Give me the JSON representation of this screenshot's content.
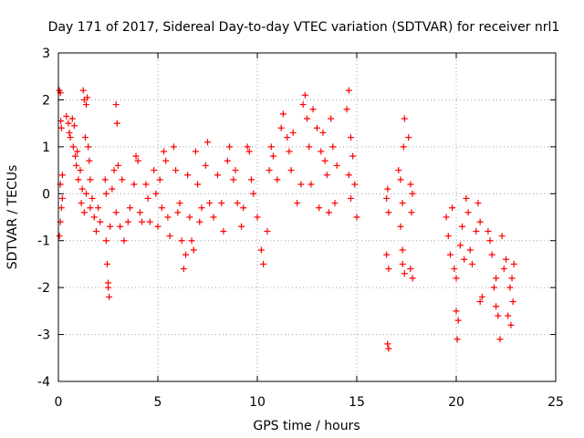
{
  "chart_data": {
    "type": "scatter",
    "title": "Day 171 of 2017, Sidereal Day-to-day VTEC variation (SDTVAR) for receiver nrl1",
    "xlabel": "GPS time / hours",
    "ylabel": "SDTVAR / TECUs",
    "xlim": [
      0,
      25
    ],
    "ylim": [
      -4,
      3
    ],
    "xticks": [
      0,
      5,
      10,
      15,
      20,
      25
    ],
    "yticks": [
      -4,
      -3,
      -2,
      -1,
      0,
      1,
      2,
      3
    ],
    "xtick_labels": [
      "0",
      "5",
      "10",
      "15",
      "20",
      "25"
    ],
    "ytick_labels": [
      "-4",
      "-3",
      "-2",
      "-1",
      "0",
      "1",
      "2",
      "3"
    ],
    "grid": true,
    "marker": "+",
    "marker_color": "#ff0000",
    "series": [
      {
        "name": "nrl1",
        "points": [
          [
            0.05,
            2.2
          ],
          [
            0.1,
            2.15
          ],
          [
            0.12,
            1.55
          ],
          [
            0.15,
            1.4
          ],
          [
            0.2,
            0.4
          ],
          [
            0.1,
            0.2
          ],
          [
            0.15,
            -0.3
          ],
          [
            0.1,
            -0.6
          ],
          [
            0.05,
            -0.9
          ],
          [
            0.2,
            -0.1
          ],
          [
            0.4,
            1.65
          ],
          [
            0.5,
            1.5
          ],
          [
            0.55,
            1.3
          ],
          [
            0.6,
            1.2
          ],
          [
            0.7,
            1.6
          ],
          [
            0.8,
            1.45
          ],
          [
            0.75,
            1.0
          ],
          [
            0.85,
            0.8
          ],
          [
            0.9,
            0.6
          ],
          [
            1.0,
            0.3
          ],
          [
            0.95,
            0.9
          ],
          [
            1.1,
            0.5
          ],
          [
            1.2,
            0.1
          ],
          [
            1.15,
            -0.2
          ],
          [
            1.3,
            -0.4
          ],
          [
            1.25,
            2.2
          ],
          [
            1.3,
            2.0
          ],
          [
            1.4,
            1.9
          ],
          [
            1.45,
            2.05
          ],
          [
            1.35,
            1.2
          ],
          [
            1.5,
            1.0
          ],
          [
            1.55,
            0.7
          ],
          [
            1.6,
            0.3
          ],
          [
            1.7,
            -0.1
          ],
          [
            1.8,
            -0.5
          ],
          [
            1.9,
            -0.8
          ],
          [
            2.0,
            -0.3
          ],
          [
            2.1,
            -0.6
          ],
          [
            1.6,
            -0.3
          ],
          [
            1.4,
            0.0
          ],
          [
            2.4,
            -1.0
          ],
          [
            2.45,
            -1.5
          ],
          [
            2.5,
            -1.9
          ],
          [
            2.55,
            -2.2
          ],
          [
            2.5,
            -2.0
          ],
          [
            2.35,
            0.3
          ],
          [
            2.4,
            0.0
          ],
          [
            2.6,
            -0.7
          ],
          [
            2.7,
            0.1
          ],
          [
            2.8,
            0.5
          ],
          [
            2.9,
            1.9
          ],
          [
            2.95,
            1.5
          ],
          [
            3.0,
            0.6
          ],
          [
            2.9,
            -0.4
          ],
          [
            3.1,
            -0.7
          ],
          [
            3.3,
            -1.0
          ],
          [
            3.2,
            0.3
          ],
          [
            3.5,
            -0.6
          ],
          [
            3.6,
            -0.3
          ],
          [
            3.8,
            0.2
          ],
          [
            3.9,
            0.8
          ],
          [
            4.0,
            0.7
          ],
          [
            4.1,
            -0.4
          ],
          [
            4.2,
            -0.6
          ],
          [
            4.4,
            0.2
          ],
          [
            4.5,
            -0.1
          ],
          [
            4.6,
            -0.6
          ],
          [
            4.8,
            0.5
          ],
          [
            4.9,
            0.0
          ],
          [
            5.0,
            -0.7
          ],
          [
            5.1,
            0.3
          ],
          [
            5.2,
            -0.3
          ],
          [
            5.3,
            0.9
          ],
          [
            5.4,
            0.7
          ],
          [
            5.5,
            -0.5
          ],
          [
            5.6,
            -0.9
          ],
          [
            5.8,
            1.0
          ],
          [
            5.9,
            0.5
          ],
          [
            6.0,
            -0.4
          ],
          [
            6.1,
            -0.2
          ],
          [
            6.2,
            -1.0
          ],
          [
            6.3,
            -1.6
          ],
          [
            6.4,
            -1.3
          ],
          [
            6.5,
            0.4
          ],
          [
            6.6,
            -0.5
          ],
          [
            6.7,
            -1.0
          ],
          [
            6.8,
            -1.2
          ],
          [
            6.9,
            0.9
          ],
          [
            7.0,
            0.2
          ],
          [
            7.1,
            -0.6
          ],
          [
            7.2,
            -0.3
          ],
          [
            7.4,
            0.6
          ],
          [
            7.5,
            1.1
          ],
          [
            7.6,
            -0.2
          ],
          [
            7.8,
            -0.5
          ],
          [
            8.0,
            0.4
          ],
          [
            8.2,
            -0.2
          ],
          [
            8.3,
            -0.8
          ],
          [
            8.5,
            0.7
          ],
          [
            8.6,
            1.0
          ],
          [
            8.8,
            0.3
          ],
          [
            8.9,
            0.5
          ],
          [
            9.0,
            -0.2
          ],
          [
            9.2,
            -0.7
          ],
          [
            9.3,
            -0.3
          ],
          [
            9.5,
            1.0
          ],
          [
            9.6,
            0.9
          ],
          [
            9.7,
            0.3
          ],
          [
            9.8,
            0.0
          ],
          [
            10.0,
            -0.5
          ],
          [
            10.2,
            -1.2
          ],
          [
            10.3,
            -1.5
          ],
          [
            10.5,
            -0.8
          ],
          [
            10.6,
            0.5
          ],
          [
            10.7,
            1.0
          ],
          [
            10.8,
            0.8
          ],
          [
            11.0,
            0.3
          ],
          [
            11.2,
            1.4
          ],
          [
            11.3,
            1.7
          ],
          [
            11.5,
            1.2
          ],
          [
            11.6,
            0.9
          ],
          [
            11.7,
            0.5
          ],
          [
            11.8,
            1.3
          ],
          [
            12.0,
            -0.2
          ],
          [
            12.2,
            0.2
          ],
          [
            12.3,
            1.9
          ],
          [
            12.4,
            2.1
          ],
          [
            12.5,
            1.6
          ],
          [
            12.6,
            1.0
          ],
          [
            12.7,
            0.2
          ],
          [
            12.8,
            1.8
          ],
          [
            13.0,
            1.4
          ],
          [
            13.1,
            -0.3
          ],
          [
            13.2,
            0.9
          ],
          [
            13.3,
            1.3
          ],
          [
            13.4,
            0.7
          ],
          [
            13.5,
            0.4
          ],
          [
            13.6,
            -0.4
          ],
          [
            13.7,
            1.6
          ],
          [
            13.8,
            1.0
          ],
          [
            13.9,
            -0.2
          ],
          [
            14.0,
            0.6
          ],
          [
            14.5,
            1.8
          ],
          [
            14.6,
            2.2
          ],
          [
            14.7,
            1.2
          ],
          [
            14.8,
            0.8
          ],
          [
            14.9,
            0.2
          ],
          [
            15.0,
            -0.5
          ],
          [
            14.7,
            -0.1
          ],
          [
            14.6,
            0.4
          ],
          [
            16.5,
            -0.1
          ],
          [
            16.55,
            0.1
          ],
          [
            16.6,
            -0.4
          ],
          [
            16.5,
            -1.3
          ],
          [
            16.6,
            -1.6
          ],
          [
            16.55,
            -3.2
          ],
          [
            16.6,
            -3.3
          ],
          [
            17.1,
            0.5
          ],
          [
            17.2,
            0.3
          ],
          [
            17.3,
            -0.2
          ],
          [
            17.2,
            -0.7
          ],
          [
            17.3,
            -1.2
          ],
          [
            17.4,
            1.6
          ],
          [
            17.35,
            1.0
          ],
          [
            17.3,
            -1.5
          ],
          [
            17.4,
            -1.7
          ],
          [
            17.7,
            0.2
          ],
          [
            17.8,
            0.0
          ],
          [
            17.75,
            -0.4
          ],
          [
            17.6,
            1.2
          ],
          [
            17.8,
            -1.8
          ],
          [
            17.7,
            -1.6
          ],
          [
            19.5,
            -0.5
          ],
          [
            19.6,
            -0.9
          ],
          [
            19.7,
            -1.3
          ],
          [
            19.8,
            -0.3
          ],
          [
            19.9,
            -1.6
          ],
          [
            20.0,
            -1.8
          ],
          [
            20.0,
            -2.5
          ],
          [
            20.05,
            -3.1
          ],
          [
            20.1,
            -2.7
          ],
          [
            20.2,
            -1.1
          ],
          [
            20.3,
            -0.7
          ],
          [
            20.4,
            -1.4
          ],
          [
            20.5,
            -0.1
          ],
          [
            20.6,
            -0.4
          ],
          [
            20.7,
            -1.2
          ],
          [
            20.8,
            -1.5
          ],
          [
            21.0,
            -0.8
          ],
          [
            21.1,
            -0.2
          ],
          [
            21.2,
            -2.3
          ],
          [
            21.3,
            -2.2
          ],
          [
            21.2,
            -0.6
          ],
          [
            21.6,
            -0.8
          ],
          [
            21.7,
            -1.0
          ],
          [
            21.8,
            -1.3
          ],
          [
            21.9,
            -2.0
          ],
          [
            22.0,
            -2.4
          ],
          [
            22.1,
            -2.6
          ],
          [
            22.2,
            -3.1
          ],
          [
            22.0,
            -1.8
          ],
          [
            22.3,
            -0.9
          ],
          [
            22.4,
            -1.6
          ],
          [
            22.5,
            -1.4
          ],
          [
            22.6,
            -2.6
          ],
          [
            22.7,
            -2.0
          ],
          [
            22.8,
            -1.8
          ],
          [
            22.9,
            -1.5
          ],
          [
            22.75,
            -2.8
          ],
          [
            22.85,
            -2.3
          ]
        ]
      }
    ]
  }
}
